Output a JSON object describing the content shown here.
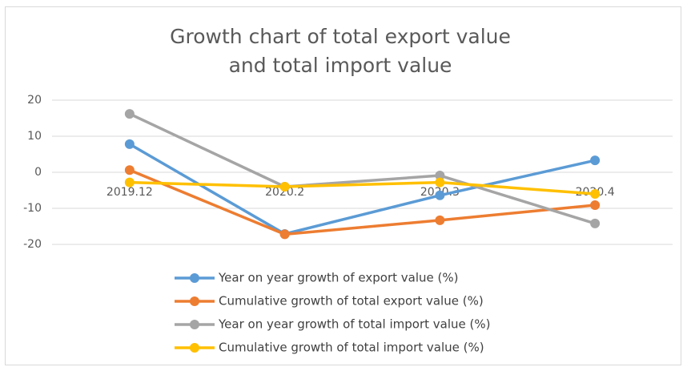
{
  "chart_data": {
    "type": "line",
    "title": "Growth chart of total export value and total import value",
    "categories": [
      "2019.12",
      "2020.2",
      "2020.3",
      "2020.4"
    ],
    "series": [
      {
        "name": "Year on year growth of export value (%)",
        "color": "#5b9bd5",
        "values": [
          7.8,
          -17.1,
          -6.4,
          3.3
        ]
      },
      {
        "name": "Cumulative growth of total export value (%)",
        "color": "#ed7d31",
        "values": [
          0.6,
          -17.2,
          -13.3,
          -9.1
        ]
      },
      {
        "name": "Year on year growth of total import value (%)",
        "color": "#a5a5a5",
        "values": [
          16.2,
          -4,
          -0.9,
          -14.2
        ]
      },
      {
        "name": "Cumulative growth of total import value (%)",
        "color": "#ffc000",
        "values": [
          -2.8,
          -4,
          -2.8,
          -6
        ]
      }
    ],
    "ylim": [
      -20,
      20
    ],
    "yticks": [
      -20,
      -10,
      0,
      10,
      20
    ],
    "grid": true,
    "legend": "bottom"
  }
}
